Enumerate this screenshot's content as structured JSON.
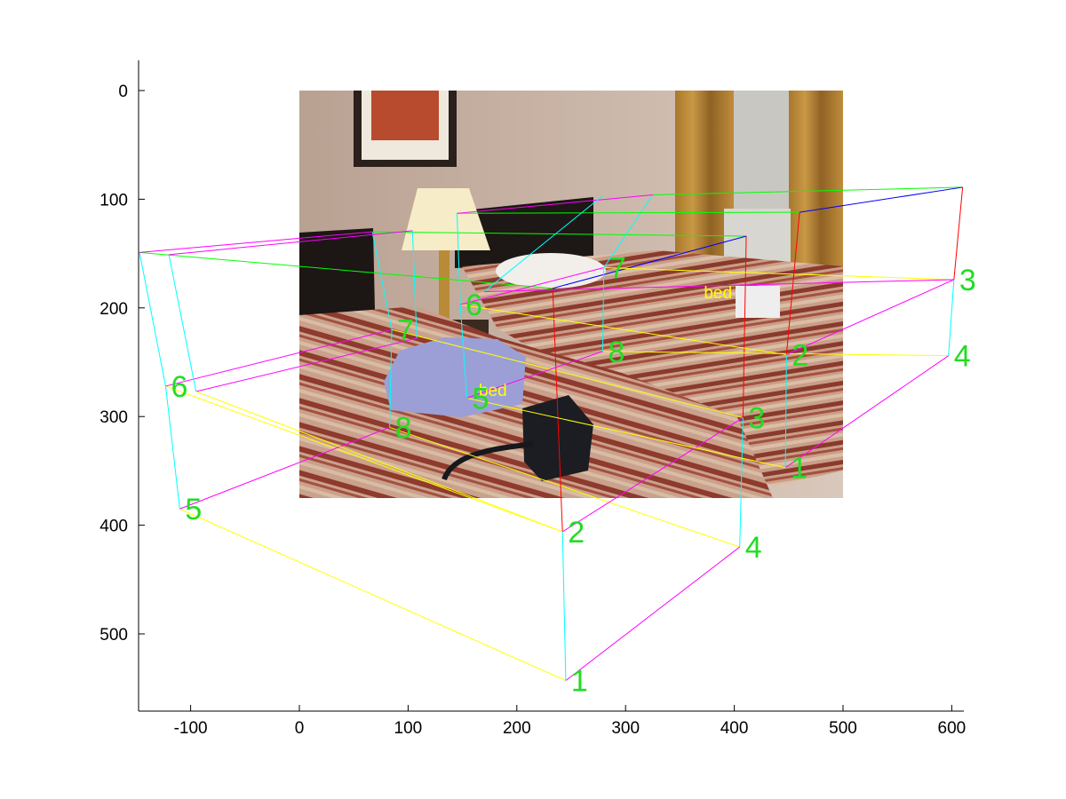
{
  "chart_data": {
    "type": "scatter",
    "title": "",
    "xlabel": "",
    "ylabel": "",
    "xlim": [
      -147,
      612
    ],
    "ylim": [
      572,
      -27
    ],
    "y_reversed": true,
    "x_ticks": [
      -100,
      0,
      100,
      200,
      300,
      400,
      500,
      600
    ],
    "y_ticks": [
      0,
      100,
      200,
      300,
      400,
      500
    ],
    "x_tick_labels": [
      "-100",
      "0",
      "100",
      "200",
      "300",
      "400",
      "500",
      "600"
    ],
    "y_tick_labels": [
      "0",
      "100",
      "200",
      "300",
      "400",
      "500"
    ],
    "grid": false,
    "background_photo": {
      "extent_x": [
        0,
        500
      ],
      "extent_y": [
        0,
        375
      ],
      "depicts": "hotel room with two beds with striped bedspreads, a table lamp, a framed picture, curtains and a window"
    },
    "edge_colors": {
      "bottom_long": "#ffff00",
      "bottom_short": "#ff00ff",
      "vertical_1_2": "#ff0000",
      "vertical_3_4": "#00ffff",
      "vertical_5_6": "#00ffff",
      "vertical_7_8": "#00ffff",
      "top_long": "#00ff00",
      "top_short": "#ff00ff",
      "top_far": "#0000ff"
    },
    "boxes": [
      {
        "class_label": "bed",
        "label_position": [
          165,
          281
        ],
        "corners": [
          {
            "id": "1",
            "x": 245,
            "y": 543
          },
          {
            "id": "2",
            "x": 242,
            "y": 406
          },
          {
            "id": "3",
            "x": 408,
            "y": 301
          },
          {
            "id": "4",
            "x": 405,
            "y": 420
          },
          {
            "id": "5",
            "x": -110,
            "y": 385
          },
          {
            "id": "6",
            "x": -123,
            "y": 272
          },
          {
            "id": "7",
            "x": 85,
            "y": 220
          },
          {
            "id": "8",
            "x": 83,
            "y": 310
          }
        ],
        "top_corners": [
          {
            "x": 233,
            "y": 182
          },
          {
            "x": 411,
            "y": 134
          },
          {
            "x": -147,
            "y": 149
          },
          {
            "x": 67,
            "y": 130
          }
        ],
        "middle_corners": [
          {
            "x": -95,
            "y": 277
          },
          {
            "x": 108,
            "y": 228
          },
          {
            "x": -120,
            "y": 151
          },
          {
            "x": 104,
            "y": 129
          }
        ]
      },
      {
        "class_label": "bed",
        "label_position": [
          372,
          191
        ],
        "corners": [
          {
            "id": "1",
            "x": 447,
            "y": 347
          },
          {
            "id": "2",
            "x": 448,
            "y": 243
          },
          {
            "id": "3",
            "x": 602,
            "y": 174
          },
          {
            "id": "4",
            "x": 597,
            "y": 244
          },
          {
            "id": "5",
            "x": 154,
            "y": 283
          },
          {
            "id": "6",
            "x": 148,
            "y": 197
          },
          {
            "id": "7",
            "x": 280,
            "y": 163
          },
          {
            "id": "8",
            "x": 279,
            "y": 240
          }
        ],
        "top_corners": [
          {
            "x": 460,
            "y": 112
          },
          {
            "x": 610,
            "y": 89
          },
          {
            "x": 145,
            "y": 113
          },
          {
            "x": 325,
            "y": 96
          }
        ],
        "middle_corners": [
          {
            "x": 170,
            "y": 185
          },
          {
            "x": 280,
            "y": 96
          }
        ]
      }
    ]
  }
}
